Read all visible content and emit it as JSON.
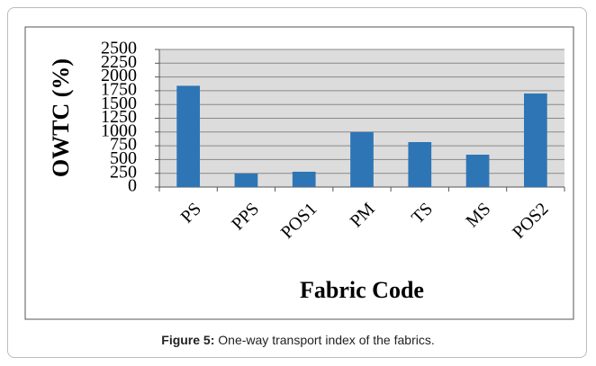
{
  "chart_data": {
    "type": "bar",
    "categories": [
      "PS",
      "PPS",
      "POS1",
      "PM",
      "TS",
      "MS",
      "POS2"
    ],
    "values": [
      1840,
      245,
      278,
      997,
      817,
      588,
      1700
    ],
    "color": "#2e75b6",
    "xlabel": "Fabric Code",
    "ylabel": "OWTC (%)",
    "ylim": [
      0,
      2500
    ],
    "yticks": [
      0,
      250,
      500,
      750,
      1000,
      1250,
      1500,
      1750,
      2000,
      2250,
      2500
    ],
    "grid": true
  },
  "caption": {
    "label": "Figure 5:",
    "text": "One-way transport index of the fabrics."
  }
}
